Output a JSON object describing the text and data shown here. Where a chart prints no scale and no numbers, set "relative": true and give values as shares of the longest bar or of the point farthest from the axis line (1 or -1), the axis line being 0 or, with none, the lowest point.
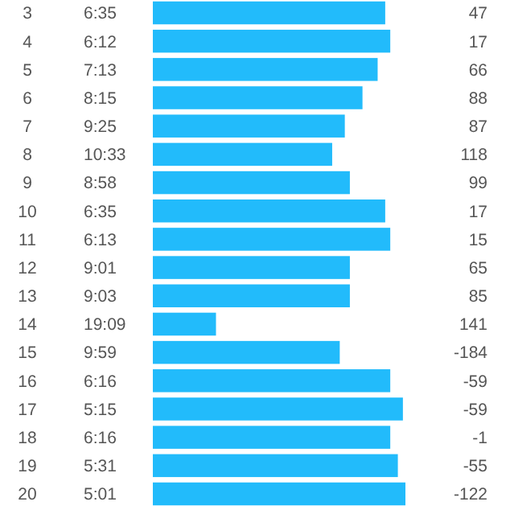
{
  "chart_data": {
    "type": "bar",
    "orientation": "horizontal",
    "relative": true,
    "color": "#22bbfb",
    "categories": [
      "3",
      "4",
      "5",
      "6",
      "7",
      "8",
      "9",
      "10",
      "11",
      "12",
      "13",
      "14",
      "15",
      "16",
      "17",
      "18",
      "19",
      "20"
    ],
    "values": [
      0.92,
      0.94,
      0.89,
      0.83,
      0.76,
      0.71,
      0.78,
      0.92,
      0.94,
      0.78,
      0.78,
      0.25,
      0.74,
      0.94,
      0.99,
      0.94,
      0.97,
      1
    ],
    "annotations": [
      "6:35",
      "6:12",
      "7:13",
      "8:15",
      "9:25",
      "10:33",
      "8:58",
      "6:35",
      "6:13",
      "9:01",
      "9:03",
      "19:09",
      "9:59",
      "6:16",
      "5:15",
      "6:16",
      "5:31",
      "5:01",
      "47",
      "17",
      "66",
      "88",
      "87",
      "118",
      "99",
      "17",
      "15",
      "65",
      "85",
      "141",
      "-184",
      "-59",
      "-59",
      "-1",
      "-55",
      "-122"
    ]
  }
}
